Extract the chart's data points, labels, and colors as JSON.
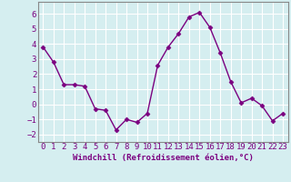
{
  "x": [
    0,
    1,
    2,
    3,
    4,
    5,
    6,
    7,
    8,
    9,
    10,
    11,
    12,
    13,
    14,
    15,
    16,
    17,
    18,
    19,
    20,
    21,
    22,
    23
  ],
  "y": [
    3.8,
    2.8,
    1.3,
    1.3,
    1.2,
    -0.3,
    -0.4,
    -1.7,
    -1.0,
    -1.2,
    -0.6,
    2.6,
    3.8,
    4.7,
    5.8,
    6.1,
    5.1,
    3.4,
    1.5,
    0.1,
    0.4,
    -0.1,
    -1.1,
    -0.6
  ],
  "line_color": "#7B0080",
  "marker": "D",
  "marker_size": 2.5,
  "bg_color": "#d5eef0",
  "grid_color": "#ffffff",
  "xlabel": "Windchill (Refroidissement éolien,°C)",
  "xlabel_fontsize": 6.5,
  "tick_fontsize": 6.5,
  "ylim": [
    -2.5,
    6.8
  ],
  "yticks": [
    -2,
    -1,
    0,
    1,
    2,
    3,
    4,
    5,
    6
  ],
  "line_width": 1.0,
  "spine_color": "#888888",
  "label_color": "#7B0080"
}
